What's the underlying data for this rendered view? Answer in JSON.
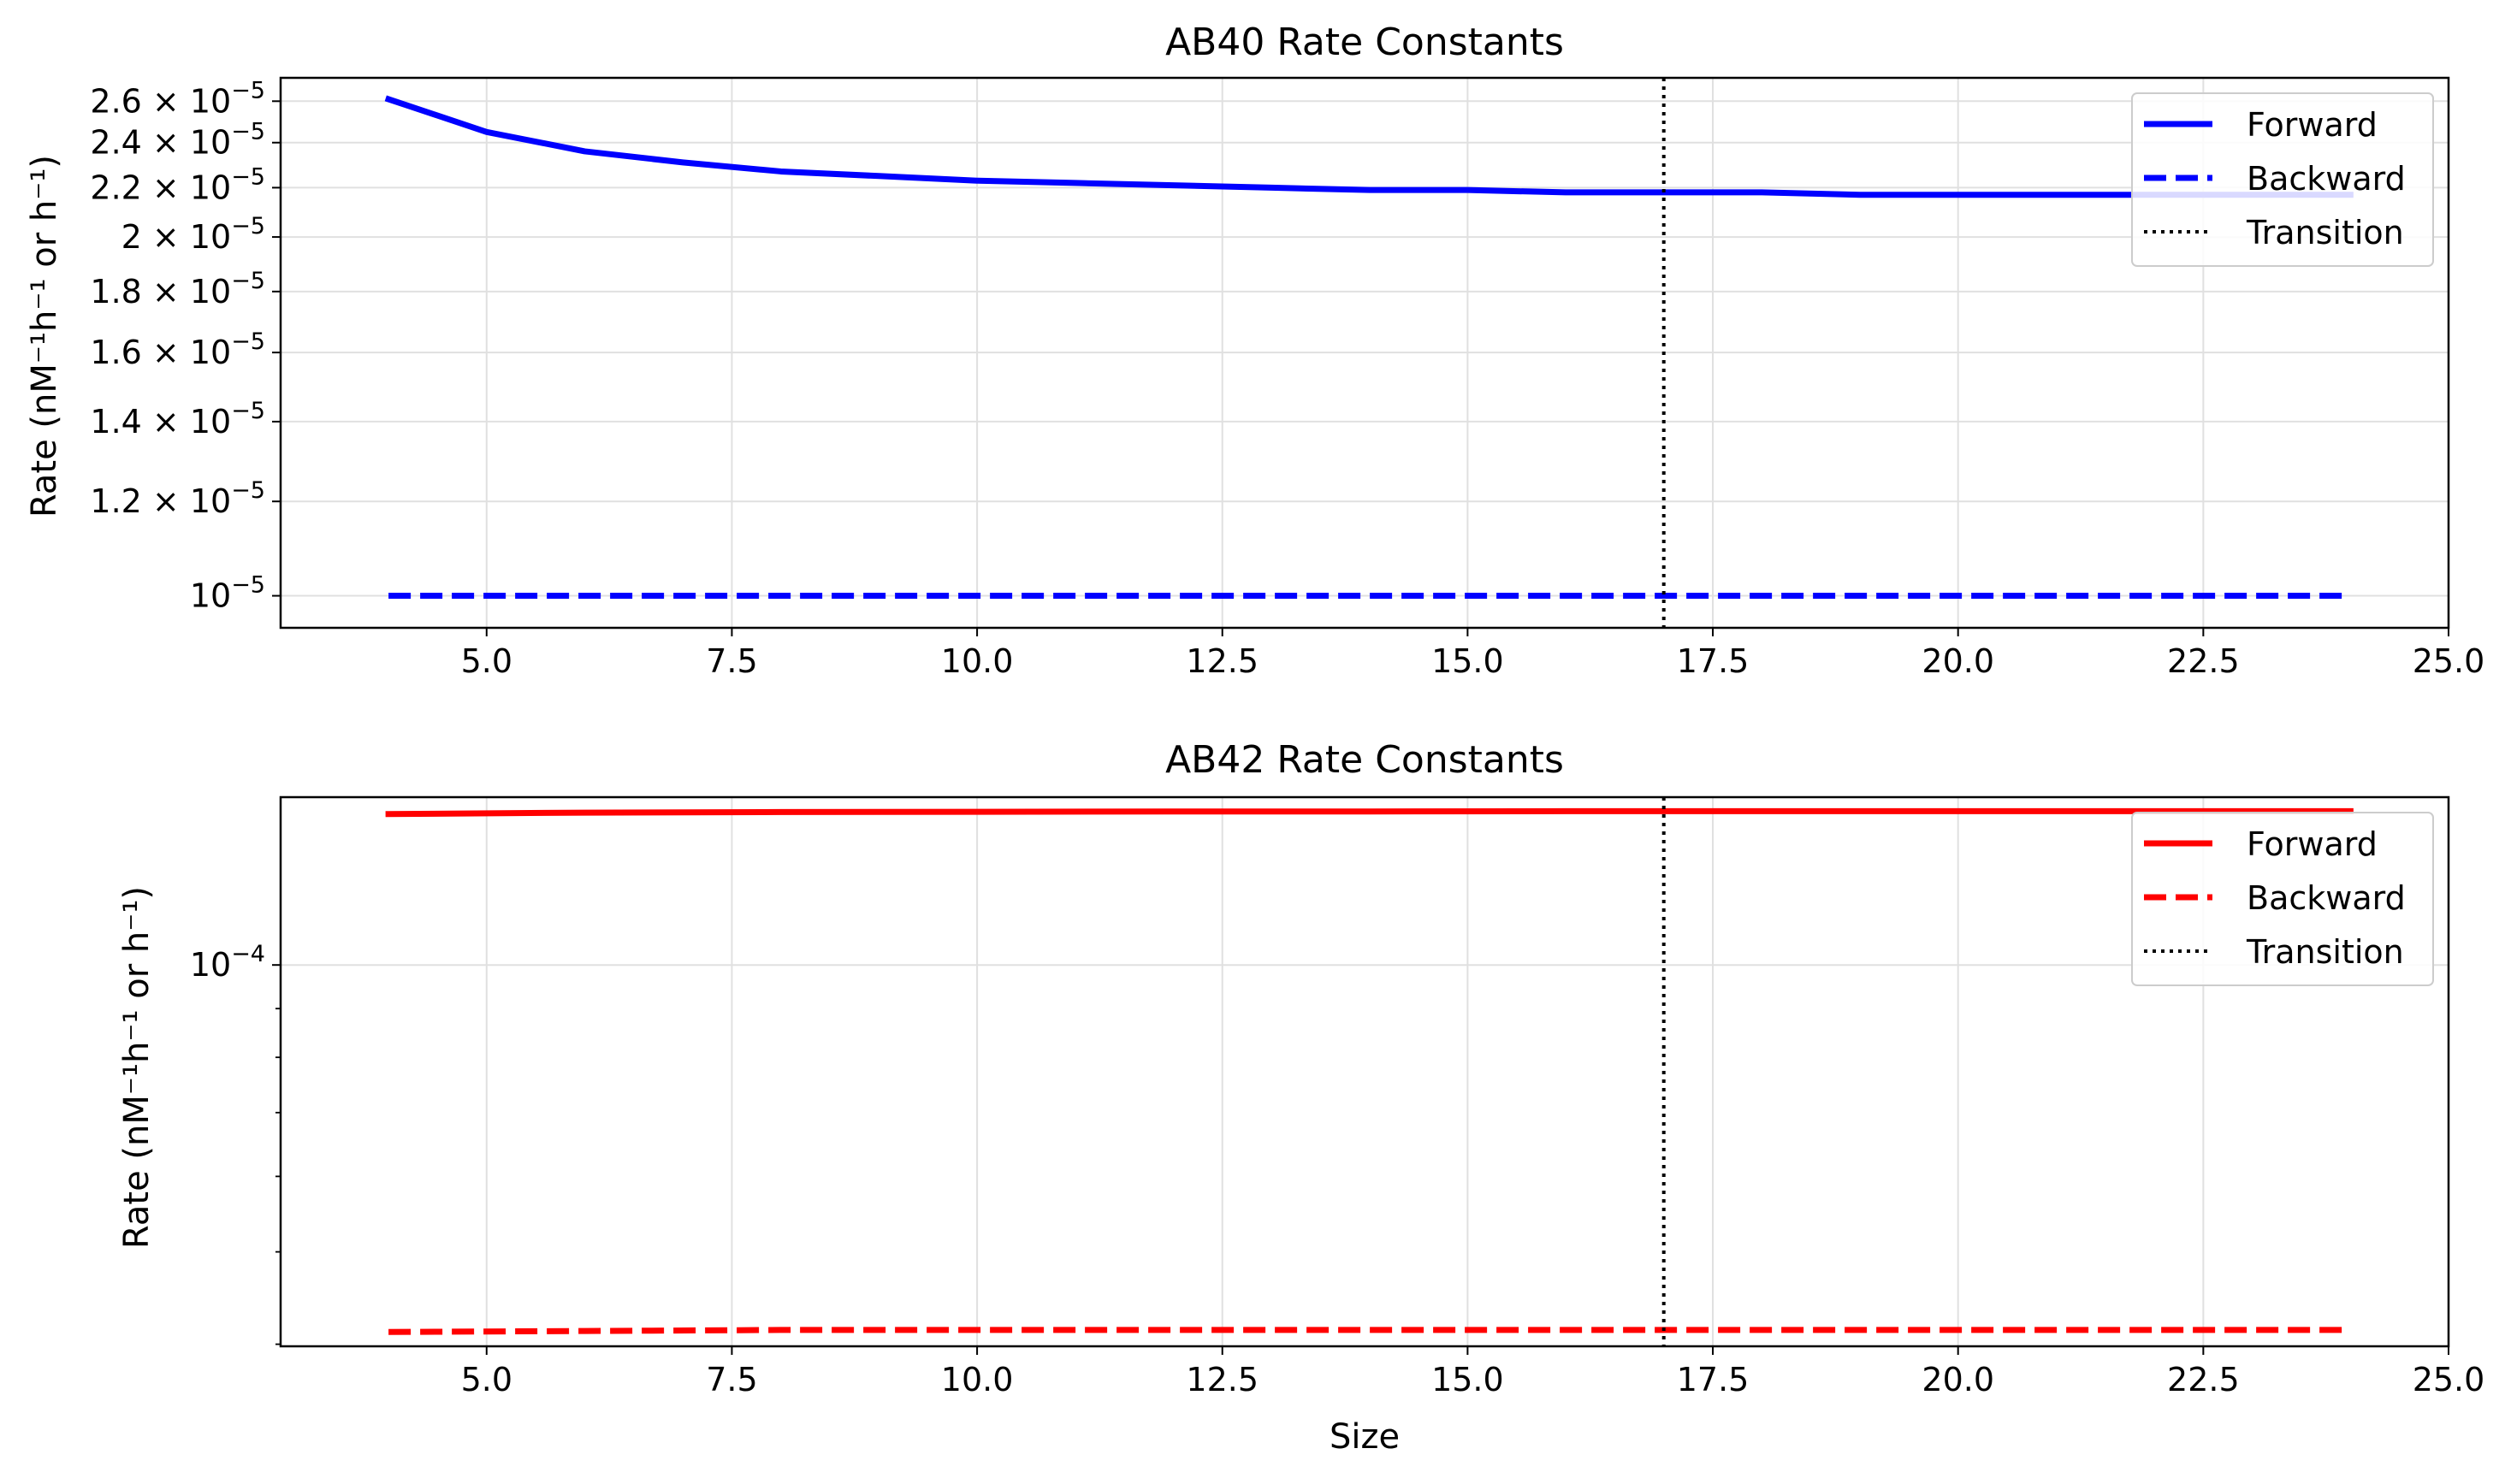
{
  "chart_data": [
    {
      "type": "line",
      "title": "AB40 Rate Constants",
      "xlabel": "",
      "ylabel": "Rate (nM⁻¹h⁻¹ or h⁻¹)",
      "xlim": [
        2.9,
        25.0
      ],
      "ylim": [
        9.4e-06,
        2.72e-05
      ],
      "yscale": "log",
      "grid": true,
      "legend_position": "top-right",
      "xticks": [
        "5.0",
        "7.5",
        "10.0",
        "12.5",
        "15.0",
        "17.5",
        "20.0",
        "22.5",
        "25.0"
      ],
      "yticks": [
        {
          "value": 2.6e-05,
          "mant": "2.6",
          "exp": "−5"
        },
        {
          "value": 2.4e-05,
          "mant": "2.4",
          "exp": "−5"
        },
        {
          "value": 2.2e-05,
          "mant": "2.2",
          "exp": "−5"
        },
        {
          "value": 2e-05,
          "mant": "2",
          "exp": "−5"
        },
        {
          "value": 1.8e-05,
          "mant": "1.8",
          "exp": "−5"
        },
        {
          "value": 1.6e-05,
          "mant": "1.6",
          "exp": "−5"
        },
        {
          "value": 1.4e-05,
          "mant": "1.4",
          "exp": "−5"
        },
        {
          "value": 1.2e-05,
          "mant": "1.2",
          "exp": "−5"
        },
        {
          "value": 1e-05,
          "mant": "",
          "exp": "−5"
        }
      ],
      "transition": {
        "x": 17,
        "name": "Transition",
        "color": "#000000"
      },
      "series": [
        {
          "name": "Forward",
          "color": "#0000ff",
          "style": "solid",
          "x": [
            4,
            5,
            6,
            7,
            8,
            9,
            10,
            11,
            12,
            13,
            14,
            15,
            16,
            17,
            18,
            19,
            20,
            21,
            22,
            23,
            24
          ],
          "values": [
            2.61e-05,
            2.45e-05,
            2.36e-05,
            2.31e-05,
            2.27e-05,
            2.25e-05,
            2.23e-05,
            2.22e-05,
            2.21e-05,
            2.2e-05,
            2.19e-05,
            2.19e-05,
            2.18e-05,
            2.18e-05,
            2.18e-05,
            2.17e-05,
            2.17e-05,
            2.17e-05,
            2.17e-05,
            2.17e-05,
            2.17e-05
          ]
        },
        {
          "name": "Backward",
          "color": "#0000ff",
          "style": "dashed",
          "x": [
            4,
            24
          ],
          "values": [
            1e-05,
            1e-05
          ]
        }
      ]
    },
    {
      "type": "line",
      "title": "AB42 Rate Constants",
      "xlabel": "Size",
      "ylabel": "Rate (nM⁻¹h⁻¹ or h⁻¹)",
      "xlim": [
        2.9,
        25.0
      ],
      "ylim": [
        3.98e-05,
        0.00015
      ],
      "yscale": "log",
      "grid": true,
      "legend_position": "top-right",
      "xticks": [
        "5.0",
        "7.5",
        "10.0",
        "12.5",
        "15.0",
        "17.5",
        "20.0",
        "22.5",
        "25.0"
      ],
      "yticks": [
        {
          "value": 0.0001,
          "mant": "",
          "exp": "−4"
        }
      ],
      "minor_yticks": [
        4e-05,
        5e-05,
        6e-05,
        7e-05,
        8e-05,
        9e-05
      ],
      "transition": {
        "x": 17,
        "name": "Transition",
        "color": "#000000"
      },
      "series": [
        {
          "name": "Forward",
          "color": "#ff0000",
          "style": "solid",
          "x": [
            4,
            6,
            8,
            10,
            12,
            14,
            16,
            18,
            20,
            22,
            24
          ],
          "values": [
            0.000144,
            0.0001445,
            0.0001447,
            0.0001448,
            0.0001449,
            0.0001449,
            0.000145,
            0.000145,
            0.000145,
            0.000145,
            0.000145
          ]
        },
        {
          "name": "Backward",
          "color": "#ff0000",
          "style": "dashed",
          "x": [
            4,
            6,
            8,
            10,
            12,
            14,
            16,
            18,
            20,
            22,
            24
          ],
          "values": [
            4.12e-05,
            4.13e-05,
            4.14e-05,
            4.14e-05,
            4.14e-05,
            4.14e-05,
            4.14e-05,
            4.14e-05,
            4.14e-05,
            4.14e-05,
            4.14e-05
          ]
        }
      ]
    }
  ]
}
